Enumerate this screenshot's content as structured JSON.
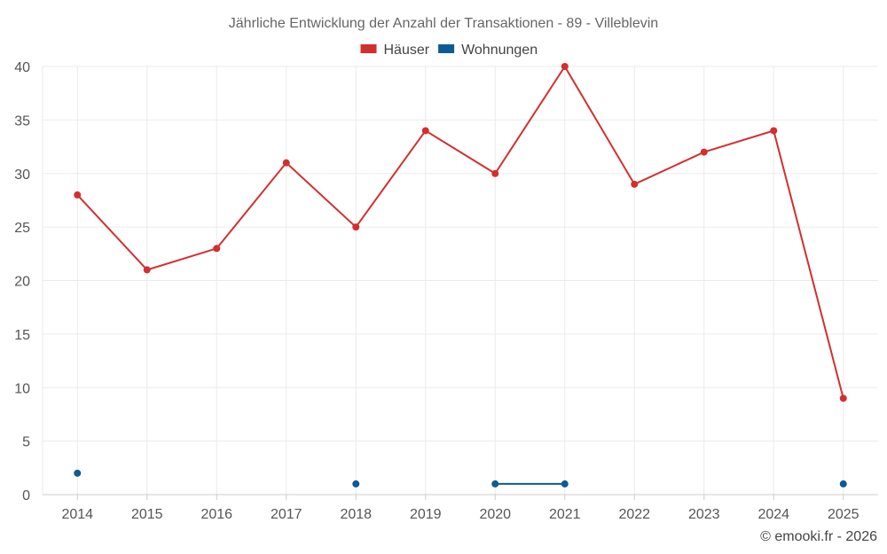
{
  "chart_data": {
    "type": "line",
    "title": "Jährliche Entwicklung der Anzahl der Transaktionen - 89 - Villeblevin",
    "categories": [
      "2014",
      "2015",
      "2016",
      "2017",
      "2018",
      "2019",
      "2020",
      "2021",
      "2022",
      "2023",
      "2024",
      "2025"
    ],
    "series": [
      {
        "name": "Häuser",
        "color": "#d32f2f",
        "values": [
          28,
          21,
          23,
          31,
          25,
          34,
          30,
          40,
          29,
          32,
          34,
          9
        ]
      },
      {
        "name": "Wohnungen",
        "color": "#0d5c91",
        "values": [
          2,
          null,
          null,
          null,
          1,
          null,
          1,
          1,
          null,
          null,
          null,
          1
        ]
      }
    ],
    "yticks": [
      0,
      5,
      10,
      15,
      20,
      25,
      30,
      35,
      40
    ],
    "ylim": [
      0,
      40
    ],
    "xlabel": "",
    "ylabel": "",
    "grid": true,
    "legend_position": "top-center"
  },
  "credit": "© emooki.fr - 2026"
}
